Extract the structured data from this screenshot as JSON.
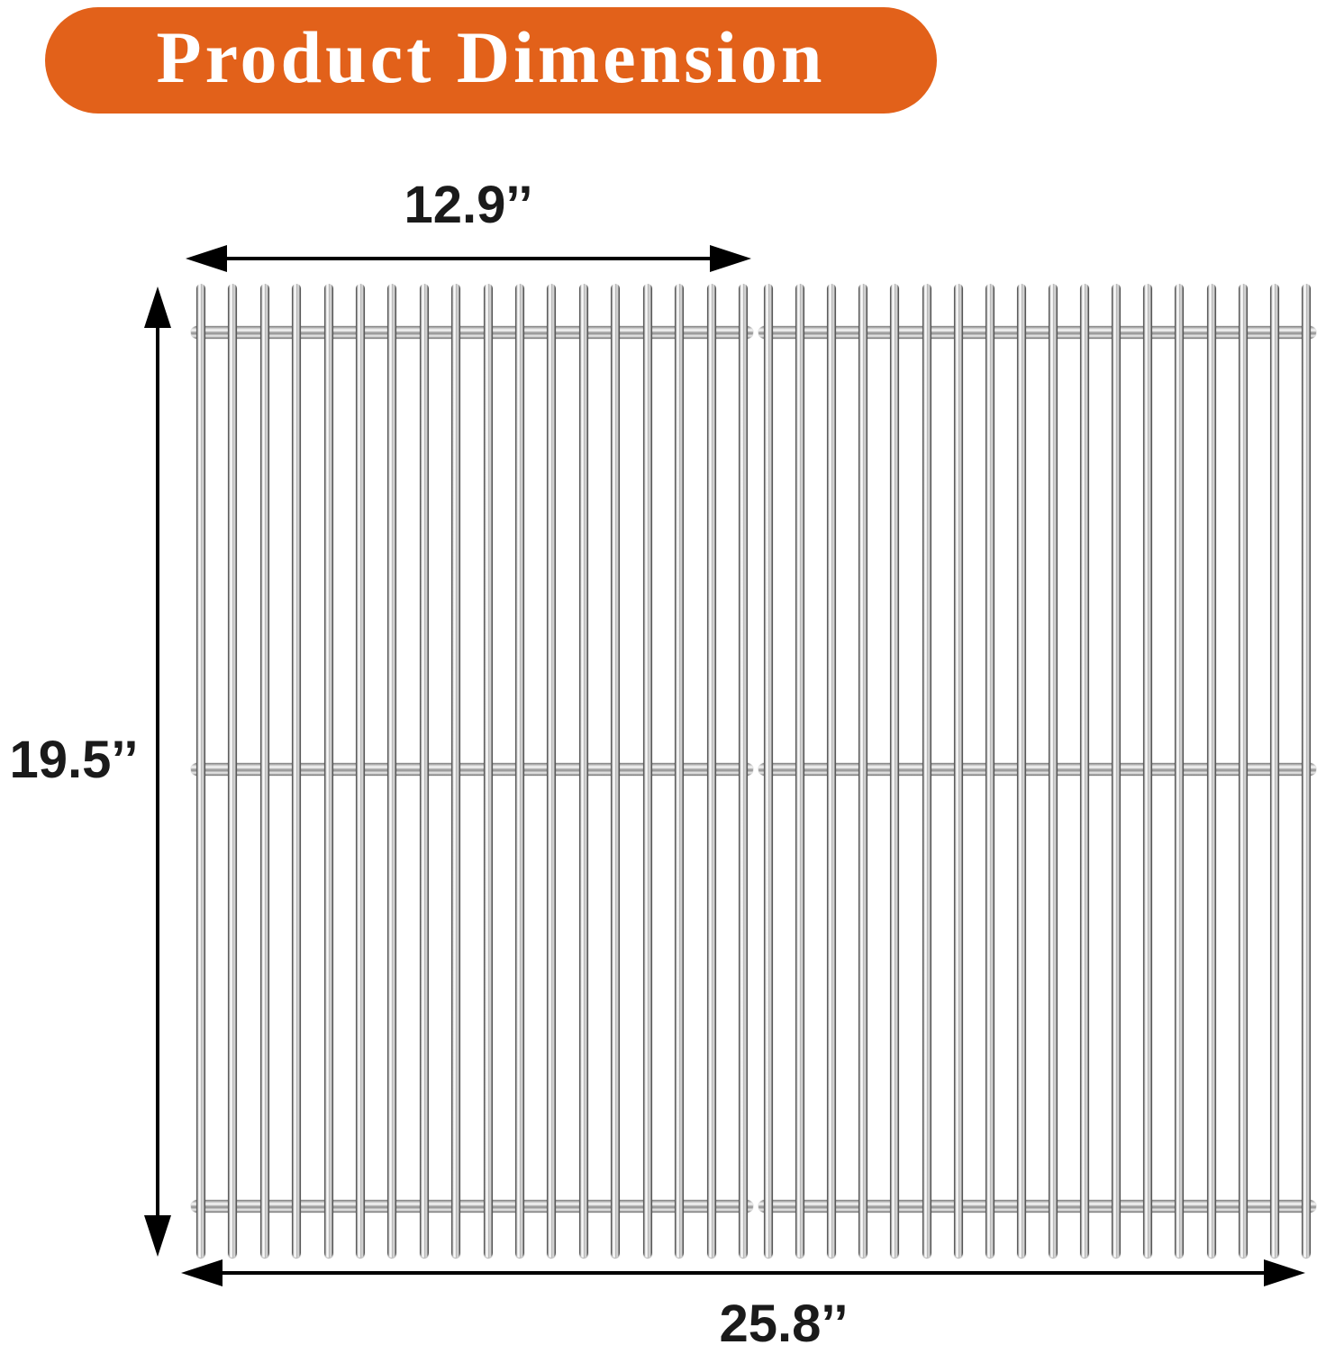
{
  "banner": {
    "title": "Product Dimension",
    "background": "#e2611a",
    "text_color": "#ffffff"
  },
  "dimensions": {
    "panel_width_label": "12.9’’",
    "height_label": "19.5’’",
    "total_width_label": "25.8’’"
  },
  "product": {
    "panels": 2,
    "bars_per_panel": 18,
    "cross_rods_per_panel": 3,
    "colors": {
      "bar_edge": "#3d3d3d",
      "bar_highlight": "#ffffff",
      "rod_mid": "#a9a9a9",
      "arrow": "#000000"
    }
  }
}
